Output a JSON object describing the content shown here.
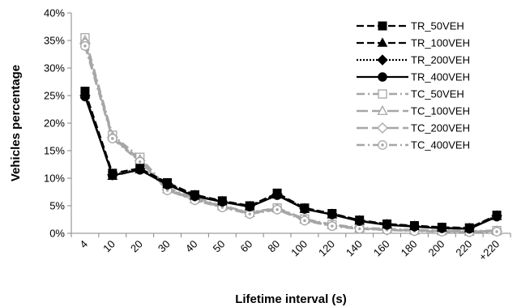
{
  "chart_data": {
    "type": "line",
    "xlabel": "Lifetime interval (s)",
    "ylabel": "Vehicles percentage",
    "categories": [
      "4",
      "10",
      "20",
      "30",
      "40",
      "50",
      "60",
      "80",
      "100",
      "120",
      "140",
      "160",
      "180",
      "200",
      "220",
      "+220"
    ],
    "ylim": [
      0,
      40
    ],
    "yticks": [
      "0%",
      "5%",
      "10%",
      "15%",
      "20%",
      "25%",
      "30%",
      "35%",
      "40%"
    ],
    "grid": false,
    "legend_position": "top-right",
    "series": [
      {
        "name": "TR_50VEH",
        "color": "#000000",
        "dash": "dashed",
        "marker": "square",
        "filled": true,
        "values": [
          25.8,
          10.9,
          11.8,
          9.2,
          7.0,
          5.9,
          5.0,
          7.3,
          4.6,
          3.6,
          2.4,
          1.7,
          1.4,
          1.1,
          1.0,
          3.3
        ]
      },
      {
        "name": "TR_100VEH",
        "color": "#000000",
        "dash": "dashed",
        "marker": "triangle",
        "filled": true,
        "values": [
          25.2,
          10.4,
          11.6,
          8.9,
          6.8,
          5.8,
          4.9,
          7.0,
          4.4,
          3.4,
          2.3,
          1.6,
          1.3,
          1.0,
          0.9,
          3.1
        ]
      },
      {
        "name": "TR_200VEH",
        "color": "#000000",
        "dash": "dotted",
        "marker": "diamond",
        "filled": true,
        "values": [
          25.0,
          10.6,
          11.7,
          9.0,
          6.9,
          5.8,
          4.9,
          7.1,
          4.5,
          3.5,
          2.3,
          1.6,
          1.3,
          1.0,
          0.9,
          3.2
        ]
      },
      {
        "name": "TR_400VEH",
        "color": "#000000",
        "dash": "solid",
        "marker": "circle",
        "filled": true,
        "values": [
          24.8,
          10.5,
          11.5,
          8.8,
          6.7,
          5.7,
          4.8,
          6.9,
          4.4,
          3.4,
          2.2,
          1.5,
          1.2,
          0.9,
          0.8,
          3.0
        ]
      },
      {
        "name": "TC_50VEH",
        "color": "#a6a6a6",
        "dash": "dashdot",
        "marker": "square",
        "filled": false,
        "values": [
          35.5,
          17.8,
          13.8,
          8.2,
          6.4,
          5.0,
          3.8,
          4.6,
          2.6,
          1.6,
          1.0,
          0.8,
          0.6,
          0.5,
          0.4,
          0.5
        ]
      },
      {
        "name": "TC_100VEH",
        "color": "#a6a6a6",
        "dash": "longdash",
        "marker": "triangle",
        "filled": false,
        "values": [
          35.0,
          17.6,
          13.4,
          8.0,
          6.2,
          4.9,
          3.7,
          4.5,
          2.5,
          1.5,
          0.9,
          0.7,
          0.5,
          0.4,
          0.3,
          0.4
        ]
      },
      {
        "name": "TC_200VEH",
        "color": "#a6a6a6",
        "dash": "longdash",
        "marker": "diamond",
        "filled": false,
        "values": [
          34.5,
          17.4,
          13.2,
          7.9,
          6.1,
          4.8,
          3.6,
          4.4,
          2.4,
          1.4,
          0.9,
          0.6,
          0.5,
          0.4,
          0.3,
          0.4
        ]
      },
      {
        "name": "TC_400VEH",
        "color": "#a6a6a6",
        "dash": "dashdot",
        "marker": "circle",
        "filled": false,
        "values": [
          34.0,
          17.2,
          13.0,
          7.8,
          6.0,
          4.7,
          3.5,
          4.3,
          2.3,
          1.3,
          0.8,
          0.6,
          0.4,
          0.3,
          0.2,
          0.3
        ]
      }
    ]
  }
}
